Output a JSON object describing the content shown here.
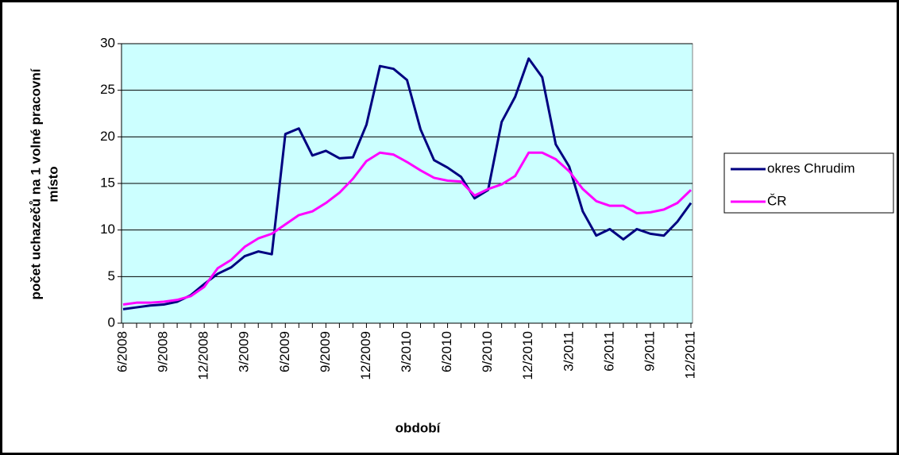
{
  "chart_data": {
    "type": "line",
    "xlabel": "období",
    "ylabel": [
      "počet uchazečů na 1 volné pracovní",
      "místo"
    ],
    "categories": [
      "6/2008",
      null,
      null,
      "9/2008",
      null,
      null,
      "12/2008",
      null,
      null,
      "3/2009",
      null,
      null,
      "6/2009",
      null,
      null,
      "9/2009",
      null,
      null,
      "12/2009",
      null,
      null,
      "3/2010",
      null,
      null,
      "6/2010",
      null,
      null,
      "9/2010",
      null,
      null,
      "12/2010",
      null,
      null,
      "3/2011",
      null,
      null,
      "6/2011",
      null,
      null,
      "9/2011",
      null,
      null,
      "12/2011"
    ],
    "series": [
      {
        "name": "okres Chrudim",
        "color": "#000080",
        "values": [
          1.5,
          1.7,
          1.9,
          2.0,
          2.3,
          3.0,
          4.2,
          5.3,
          6.0,
          7.2,
          7.7,
          7.4,
          20.3,
          20.9,
          18.0,
          18.5,
          17.7,
          17.8,
          21.3,
          27.6,
          27.3,
          26.1,
          20.8,
          17.5,
          16.7,
          15.7,
          13.4,
          14.3,
          21.6,
          24.3,
          28.4,
          26.4,
          19.2,
          16.8,
          12.0,
          9.4,
          10.1,
          9.0,
          10.1,
          9.6,
          9.4,
          10.9,
          12.9
        ]
      },
      {
        "name": "ČR",
        "color": "#ff00ff",
        "values": [
          2.0,
          2.2,
          2.2,
          2.3,
          2.5,
          2.9,
          3.9,
          5.9,
          6.8,
          8.2,
          9.1,
          9.6,
          10.6,
          11.6,
          12.0,
          12.9,
          14.0,
          15.5,
          17.4,
          18.3,
          18.1,
          17.3,
          16.4,
          15.6,
          15.3,
          15.2,
          13.7,
          14.4,
          14.9,
          15.8,
          18.3,
          18.3,
          17.6,
          16.3,
          14.4,
          13.1,
          12.6,
          12.6,
          11.8,
          11.9,
          12.2,
          12.9,
          14.3
        ]
      }
    ],
    "ylim": [
      0,
      30
    ],
    "yticks": [
      0,
      5,
      10,
      15,
      20,
      25,
      30
    ],
    "grid": true,
    "background": "#ccffff",
    "legend": "right"
  }
}
